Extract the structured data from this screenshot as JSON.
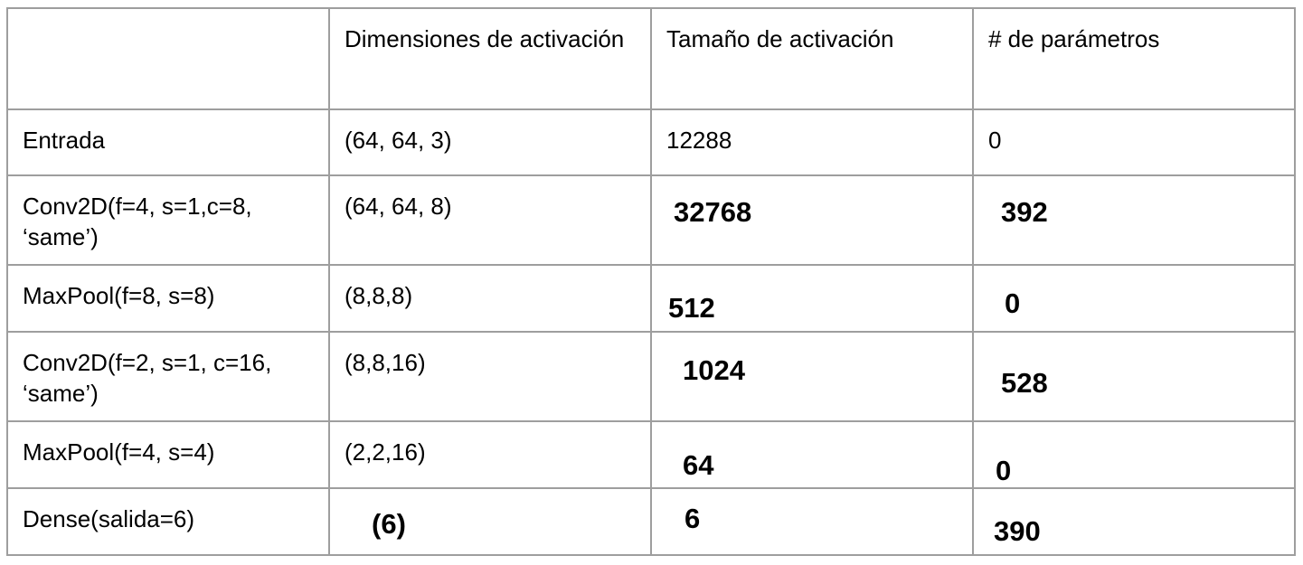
{
  "header": {
    "col0": "",
    "col1": "Dimensiones de activación",
    "col2": "Tamaño de activación",
    "col3": "# de parámetros"
  },
  "rows": [
    {
      "layer": "Entrada",
      "dims": "(64, 64, 3)",
      "size": "12288",
      "params": "0"
    },
    {
      "layer": "Conv2D(f=4, s=1,c=8, ‘same’)",
      "dims": "(64, 64, 8)",
      "size": "32768",
      "params": "392"
    },
    {
      "layer": "MaxPool(f=8, s=8)",
      "dims": "(8,8,8)",
      "size": "512",
      "params": "0"
    },
    {
      "layer": "Conv2D(f=2, s=1, c=16, ‘same’)",
      "dims": "(8,8,16)",
      "size": "1024",
      "params": "528"
    },
    {
      "layer": "MaxPool(f=4, s=4)",
      "dims": "(2,2,16)",
      "size": "64",
      "params": "0"
    },
    {
      "layer": "Dense(salida=6)",
      "dims": "(6)",
      "size": "6",
      "params": "390"
    }
  ]
}
